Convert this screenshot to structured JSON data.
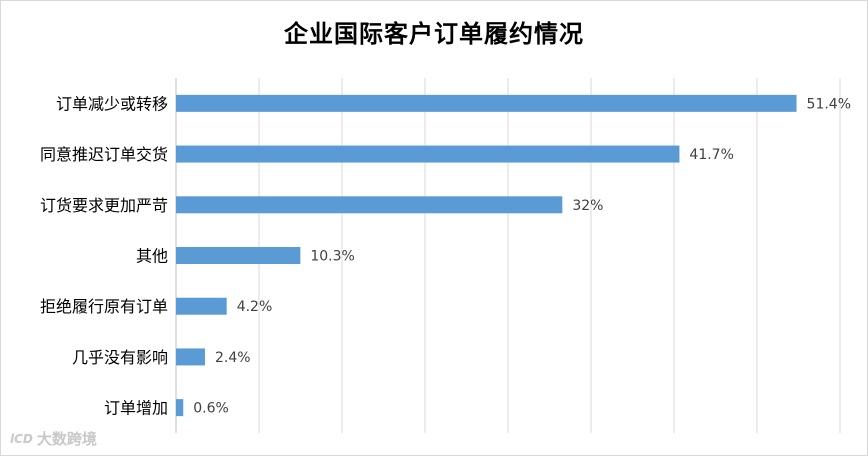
{
  "chart_data": {
    "type": "bar",
    "orientation": "horizontal",
    "title": "企业国际客户订单履约情况",
    "categories": [
      "订单减少或转移",
      "同意推迟订单交货",
      "订货要求更加严苛",
      "其他",
      "拒绝履行原有订单",
      "几乎没有影响",
      "订单增加"
    ],
    "values": [
      51.4,
      41.7,
      32,
      10.3,
      4.2,
      2.4,
      0.6
    ],
    "value_labels": [
      "51.4%",
      "41.7%",
      "32%",
      "10.3%",
      "4.2%",
      "2.4%",
      "0.6%"
    ],
    "xlim": [
      0,
      55
    ],
    "grid": true,
    "bar_color": "#5b9bd5"
  },
  "watermark": {
    "mark": "lCD",
    "text": "大数跨境"
  }
}
